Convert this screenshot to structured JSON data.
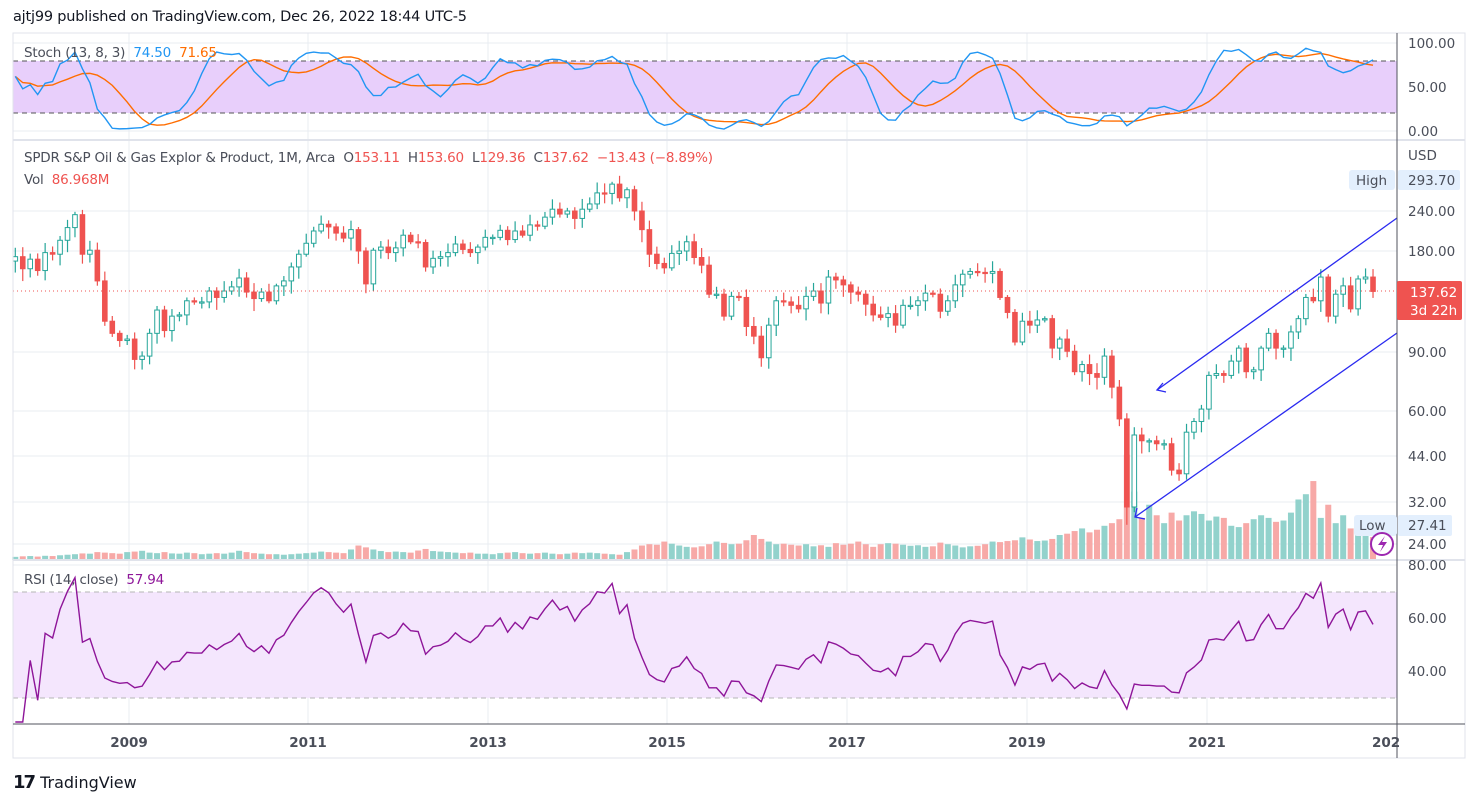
{
  "header": {
    "published": "ajtj99 published on TradingView.com, Dec 26, 2022 18:44 UTC-5"
  },
  "stoch_legend": {
    "label": "Stoch (13, 8, 3)",
    "k": "74.50",
    "d": "71.65"
  },
  "main_legend": {
    "symbol": "SPDR S&P Oil & Gas Explor & Product, 1M, Arca",
    "o_label": "O",
    "o": "153.11",
    "h_label": "H",
    "h": "153.60",
    "l_label": "L",
    "l": "129.36",
    "c_label": "C",
    "c": "137.62",
    "change": "−13.43 (−8.89%)",
    "vol_label": "Vol",
    "vol": "86.968M"
  },
  "rsi_legend": {
    "label": "RSI (14, close)",
    "value": "57.94"
  },
  "price_axis": {
    "currency": "USD",
    "ticks": [
      "240.00",
      "180.00",
      "90.00",
      "60.00",
      "44.00",
      "32.00",
      "24.00"
    ],
    "high_tag": "High",
    "high_value": "293.70",
    "low_tag": "Low",
    "low_value": "27.41",
    "last_price": "137.62",
    "countdown": "3d 22h"
  },
  "stoch_axis": {
    "ticks": [
      "100.00",
      "50.00",
      "0.00"
    ]
  },
  "rsi_axis": {
    "ticks": [
      "80.00",
      "60.00",
      "40.00"
    ]
  },
  "time_axis": {
    "ticks": [
      "2009",
      "2011",
      "2013",
      "2015",
      "2017",
      "2019",
      "2021",
      "202"
    ]
  },
  "footer": {
    "brand": "TradingView"
  },
  "colors": {
    "up": "#26a69a",
    "down": "#ef5350",
    "stoch_k": "#2196f3",
    "stoch_d": "#ff6d00",
    "rsi": "#8e1599",
    "channel": "#2a2af0"
  },
  "chart_data": {
    "type": "candlestick",
    "interval": "1M",
    "start": "2007-10",
    "end": "2022-12",
    "scale": "log",
    "ylim": [
      24,
      300
    ],
    "high": 293.7,
    "low": 27.41,
    "close": [
      175,
      161,
      172,
      159,
      180,
      178,
      196,
      214,
      234,
      178,
      183,
      148,
      112,
      103,
      98,
      99,
      86,
      88,
      103,
      121,
      105,
      116,
      117,
      129,
      128,
      128,
      138,
      132,
      138,
      142,
      151,
      137,
      131,
      137,
      129,
      143,
      148,
      163,
      178,
      192,
      209,
      219,
      215,
      206,
      199,
      211,
      182,
      145,
      183,
      187,
      180,
      186,
      203,
      194,
      193,
      163,
      173,
      175,
      180,
      191,
      184,
      180,
      187,
      200,
      200,
      210,
      197,
      209,
      203,
      218,
      216,
      230,
      243,
      235,
      240,
      228,
      243,
      252,
      272,
      271,
      289,
      263,
      278,
      240,
      211,
      178,
      167,
      162,
      179,
      182,
      194,
      174,
      165,
      135,
      135,
      116,
      133,
      132,
      108,
      101,
      87,
      109,
      129,
      128,
      125,
      122,
      133,
      138,
      127,
      152,
      149,
      144,
      137,
      135,
      126,
      117,
      115,
      118,
      109,
      125,
      125,
      129,
      136,
      135,
      120,
      129,
      144,
      155,
      158,
      157,
      156,
      158,
      132,
      119,
      97,
      112,
      109,
      113,
      114,
      93,
      99,
      91,
      79,
      83,
      78,
      76,
      88,
      71,
      57,
      31,
      51,
      49,
      49,
      48,
      48,
      40,
      39,
      52,
      56,
      61,
      77,
      78,
      77,
      85,
      93,
      79,
      80,
      93,
      103,
      93,
      93,
      104,
      114,
      132,
      129,
      152,
      116,
      135,
      143,
      122,
      150,
      152,
      137.62
    ],
    "volume_millions": [
      12,
      14,
      15,
      13,
      16,
      15,
      18,
      20,
      22,
      25,
      24,
      30,
      28,
      26,
      24,
      30,
      32,
      35,
      28,
      26,
      30,
      25,
      24,
      28,
      26,
      22,
      24,
      26,
      24,
      28,
      35,
      30,
      26,
      24,
      22,
      22,
      20,
      22,
      24,
      26,
      28,
      32,
      30,
      28,
      26,
      40,
      55,
      48,
      40,
      34,
      30,
      32,
      30,
      28,
      36,
      42,
      34,
      32,
      30,
      28,
      26,
      28,
      24,
      24,
      22,
      26,
      28,
      30,
      26,
      24,
      26,
      28,
      24,
      22,
      24,
      28,
      26,
      28,
      26,
      24,
      22,
      20,
      30,
      40,
      55,
      60,
      58,
      70,
      62,
      55,
      50,
      48,
      52,
      60,
      70,
      65,
      60,
      62,
      75,
      95,
      80,
      70,
      60,
      62,
      58,
      55,
      60,
      52,
      56,
      50,
      64,
      58,
      62,
      70,
      60,
      50,
      60,
      64,
      62,
      58,
      54,
      56,
      50,
      52,
      66,
      60,
      55,
      48,
      52,
      54,
      60,
      70,
      68,
      72,
      75,
      86,
      78,
      72,
      74,
      80,
      95,
      100,
      110,
      120,
      105,
      115,
      130,
      140,
      155,
      400,
      260,
      160,
      210,
      170,
      140,
      180,
      150,
      170,
      185,
      175,
      150,
      165,
      160,
      130,
      125,
      140,
      155,
      170,
      160,
      145,
      150,
      180,
      230,
      250,
      300,
      160,
      210,
      140,
      170,
      120,
      100,
      95,
      86.968
    ],
    "indicators": {
      "stoch": {
        "k_length": 13,
        "k_smoothing": 8,
        "d_smoothing": 3,
        "bands": [
          20,
          80
        ],
        "range": [
          0,
          100
        ]
      },
      "rsi": {
        "length": 14,
        "bands": [
          30,
          70
        ],
        "range": [
          20,
          80
        ]
      }
    },
    "drawings": [
      {
        "type": "arrow-line",
        "name": "upper-channel",
        "from": {
          "date": "2022-12",
          "price": 225
        },
        "to": {
          "date": "2020-06",
          "price": 68
        }
      },
      {
        "type": "arrow-line",
        "name": "lower-channel",
        "from": {
          "date": "2022-12",
          "price": 105
        },
        "to": {
          "date": "2020-03",
          "price": 28
        }
      }
    ]
  }
}
